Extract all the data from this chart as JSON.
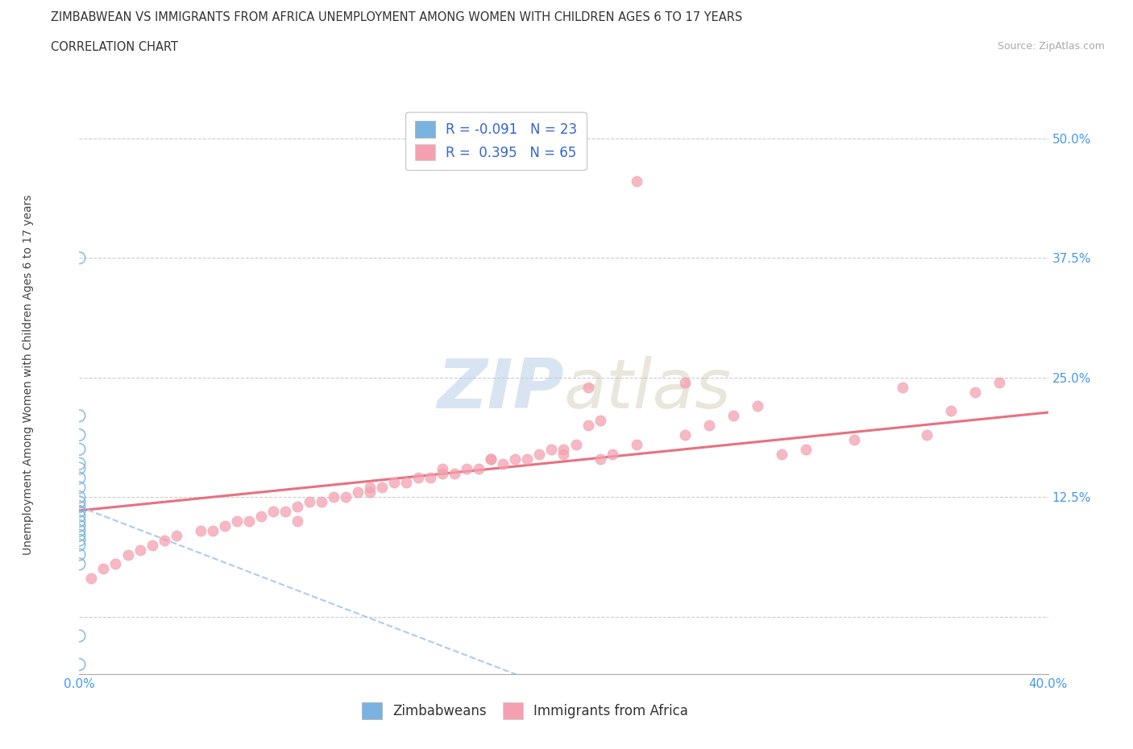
{
  "title_line1": "ZIMBABWEAN VS IMMIGRANTS FROM AFRICA UNEMPLOYMENT AMONG WOMEN WITH CHILDREN AGES 6 TO 17 YEARS",
  "title_line2": "CORRELATION CHART",
  "source": "Source: ZipAtlas.com",
  "ylabel": "Unemployment Among Women with Children Ages 6 to 17 years",
  "xlim": [
    0.0,
    0.4
  ],
  "ylim": [
    -0.06,
    0.535
  ],
  "ytick_positions": [
    0.0,
    0.125,
    0.25,
    0.375,
    0.5
  ],
  "ytick_labels": [
    "",
    "12.5%",
    "25.0%",
    "37.5%",
    "50.0%"
  ],
  "xticks": [
    0.0,
    0.05,
    0.1,
    0.15,
    0.2,
    0.25,
    0.3,
    0.35,
    0.4
  ],
  "xtick_labels_show": [
    "0.0%",
    "",
    "",
    "",
    "",
    "",
    "",
    "",
    "40.0%"
  ],
  "grid_color": "#cccccc",
  "background_color": "#ffffff",
  "color_zimbabwe": "#7ab3e0",
  "color_africa": "#f4a0b0",
  "trendline_zim_color": "#aaccee",
  "trendline_afr_color": "#e87080",
  "r_color": "#3366cc",
  "zimbabwe_x": [
    0.0,
    0.0,
    0.0,
    0.0,
    0.0,
    0.0,
    0.0,
    0.0,
    0.0,
    0.0,
    0.0,
    0.0,
    0.0,
    0.0,
    0.0,
    0.0,
    0.0,
    0.0,
    0.0,
    0.0,
    0.0,
    0.0,
    0.0
  ],
  "zimbabwe_y": [
    0.375,
    0.21,
    0.19,
    0.175,
    0.16,
    0.155,
    0.145,
    0.135,
    0.125,
    0.12,
    0.115,
    0.11,
    0.105,
    0.1,
    0.095,
    0.09,
    0.085,
    0.08,
    0.075,
    0.065,
    0.055,
    -0.02,
    -0.05
  ],
  "africa_x": [
    0.34,
    0.25,
    0.215,
    0.21,
    0.205,
    0.2,
    0.195,
    0.19,
    0.185,
    0.18,
    0.175,
    0.17,
    0.165,
    0.16,
    0.155,
    0.15,
    0.145,
    0.14,
    0.135,
    0.13,
    0.125,
    0.12,
    0.115,
    0.11,
    0.105,
    0.1,
    0.095,
    0.09,
    0.085,
    0.08,
    0.075,
    0.07,
    0.065,
    0.06,
    0.055,
    0.05,
    0.04,
    0.035,
    0.03,
    0.025,
    0.02,
    0.015,
    0.01,
    0.005,
    0.28,
    0.27,
    0.26,
    0.25,
    0.38,
    0.37,
    0.36,
    0.35,
    0.32,
    0.3,
    0.29,
    0.23,
    0.22,
    0.215,
    0.2,
    0.17,
    0.15,
    0.12,
    0.09,
    0.23,
    0.21
  ],
  "africa_y": [
    0.24,
    0.245,
    0.205,
    0.2,
    0.18,
    0.175,
    0.175,
    0.17,
    0.165,
    0.165,
    0.16,
    0.165,
    0.155,
    0.155,
    0.15,
    0.155,
    0.145,
    0.145,
    0.14,
    0.14,
    0.135,
    0.135,
    0.13,
    0.125,
    0.125,
    0.12,
    0.12,
    0.115,
    0.11,
    0.11,
    0.105,
    0.1,
    0.1,
    0.095,
    0.09,
    0.09,
    0.085,
    0.08,
    0.075,
    0.07,
    0.065,
    0.055,
    0.05,
    0.04,
    0.22,
    0.21,
    0.2,
    0.19,
    0.245,
    0.235,
    0.215,
    0.19,
    0.185,
    0.175,
    0.17,
    0.18,
    0.17,
    0.165,
    0.17,
    0.165,
    0.15,
    0.13,
    0.1,
    0.455,
    0.24
  ]
}
